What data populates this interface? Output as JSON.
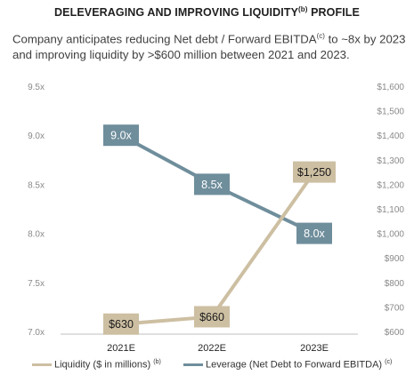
{
  "title": "DELEVERAGING AND IMPROVING LIQUIDITY",
  "title_sup": "(b)",
  "title_suffix": " PROFILE",
  "subtitle_part1": "Company anticipates reducing Net debt / Forward EBITDA",
  "subtitle_sup": "(c)",
  "subtitle_part2": " to ~8x by 2023 and improving liquidity by >$600 million between 2021 and 2023.",
  "colors": {
    "liquidity": "#cdbfa2",
    "leverage": "#6f8e9c",
    "axis_text": "#8a8a8a"
  },
  "chart_data": {
    "type": "line",
    "categories": [
      "2021E",
      "2022E",
      "2023E"
    ],
    "left_axis": {
      "ylim": [
        7.0,
        9.5
      ],
      "ticks": [
        "7.0x",
        "7.5x",
        "8.0x",
        "8.5x",
        "9.0x",
        "9.5x"
      ]
    },
    "right_axis": {
      "ylim": [
        600,
        1600
      ],
      "ticks": [
        "$600",
        "$700",
        "$800",
        "$900",
        "$1,000",
        "$1,100",
        "$1,200",
        "$1,300",
        "$1,400",
        "$1,500",
        "$1,600"
      ]
    },
    "series": [
      {
        "name": "Liquidity ($ in millions)",
        "name_sup": "(b)",
        "axis": "right",
        "values": [
          630,
          660,
          1250
        ],
        "labels": [
          "$630",
          "$660",
          "$1,250"
        ]
      },
      {
        "name": "Leverage (Net Debt to Forward EBITDA)",
        "name_sup": "(c)",
        "axis": "left",
        "values": [
          9.0,
          8.5,
          8.0
        ],
        "labels": [
          "9.0x",
          "8.5x",
          "8.0x"
        ]
      }
    ],
    "grid": false,
    "legend_position": "bottom"
  }
}
